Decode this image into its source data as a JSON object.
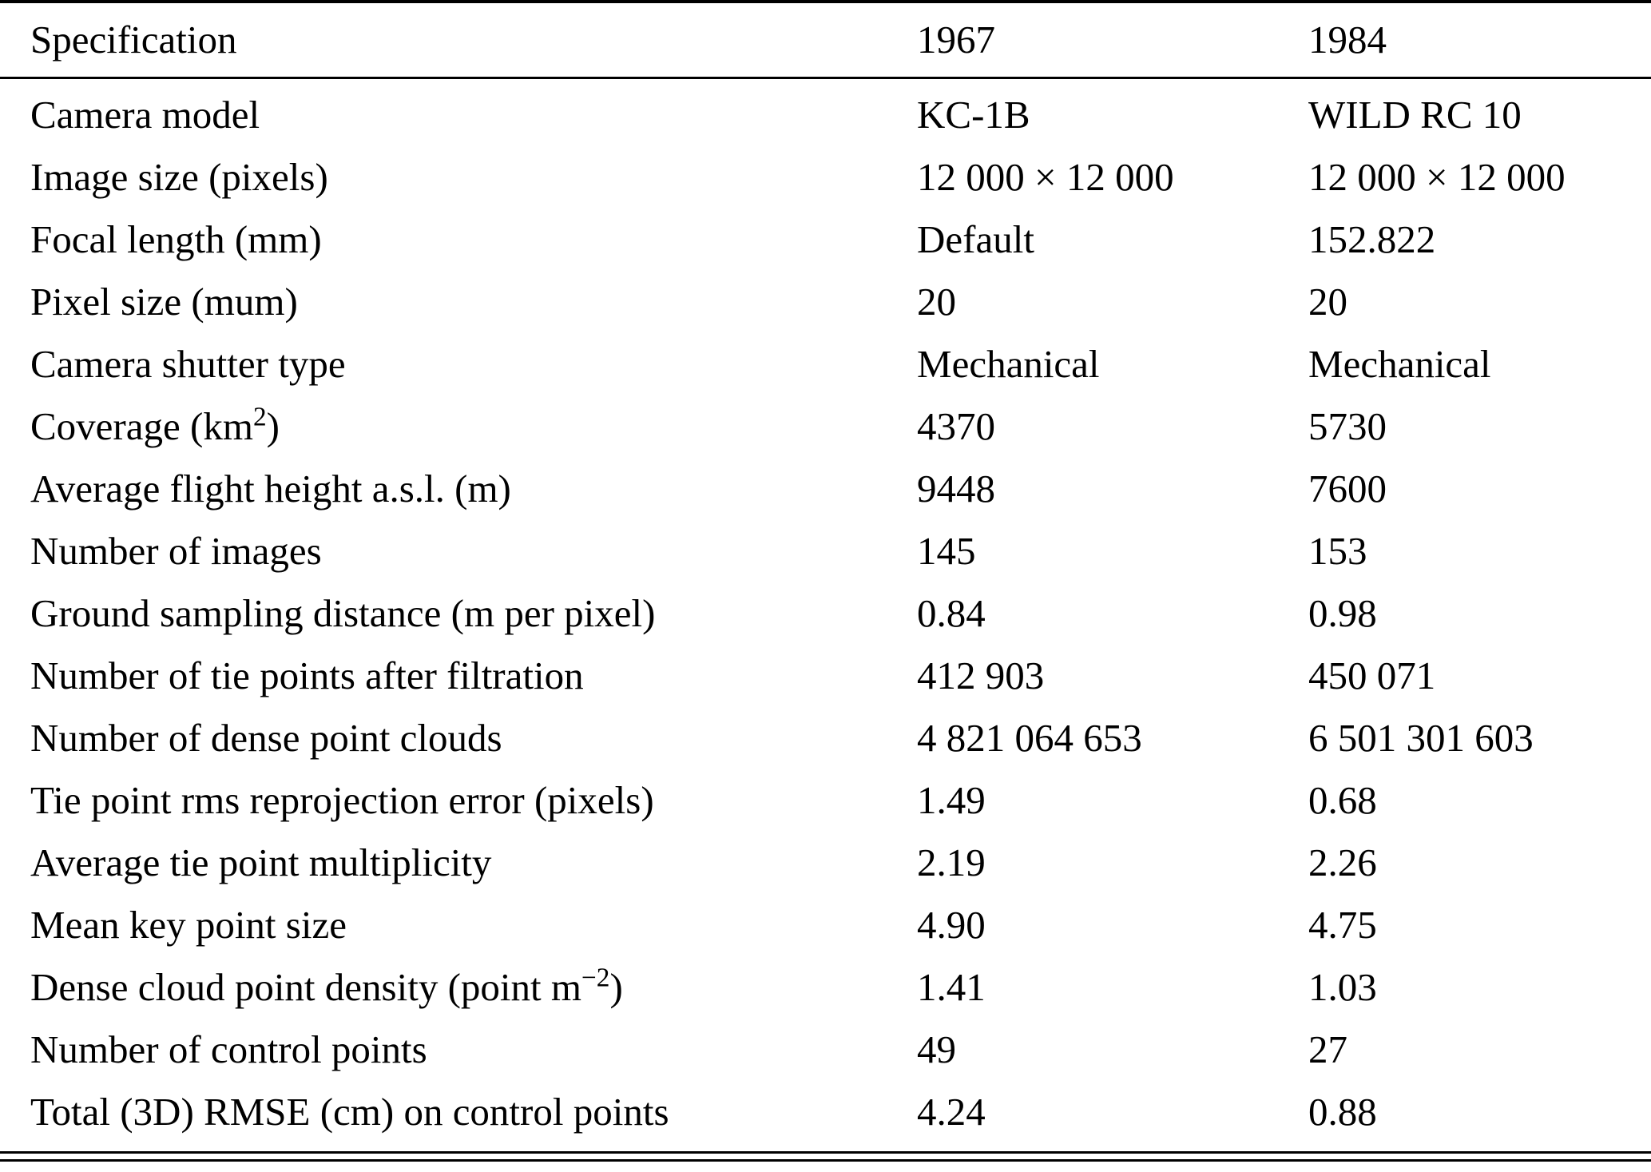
{
  "table": {
    "columns": [
      "Specification",
      "1967",
      "1984"
    ],
    "rows": [
      {
        "spec": "Camera model",
        "v1967": "KC-1B",
        "v1984": "WILD RC 10"
      },
      {
        "spec": "Image size (pixels)",
        "v1967": "12 000 × 12 000",
        "v1984": "12 000 × 12 000"
      },
      {
        "spec": "Focal length (mm)",
        "v1967": "Default",
        "v1984": "152.822"
      },
      {
        "spec": "Pixel size (mum)",
        "v1967": "20",
        "v1984": "20"
      },
      {
        "spec": "Camera shutter type",
        "v1967": "Mechanical",
        "v1984": "Mechanical"
      },
      {
        "spec": "Coverage (km^{2})",
        "v1967": "4370",
        "v1984": "5730"
      },
      {
        "spec": "Average flight height a.s.l. (m)",
        "v1967": "9448",
        "v1984": "7600"
      },
      {
        "spec": "Number of images",
        "v1967": "145",
        "v1984": "153"
      },
      {
        "spec": "Ground sampling distance (m per pixel)",
        "v1967": "0.84",
        "v1984": "0.98"
      },
      {
        "spec": "Number of tie points after filtration",
        "v1967": "412 903",
        "v1984": "450 071"
      },
      {
        "spec": "Number of dense point clouds",
        "v1967": "4 821 064 653",
        "v1984": "6 501 301 603"
      },
      {
        "spec": "Tie point rms reprojection error (pixels)",
        "v1967": "1.49",
        "v1984": "0.68"
      },
      {
        "spec": "Average tie point multiplicity",
        "v1967": "2.19",
        "v1984": "2.26"
      },
      {
        "spec": "Mean key point size",
        "v1967": "4.90",
        "v1984": "4.75"
      },
      {
        "spec": "Dense cloud point density (point m^{−2})",
        "v1967": "1.41",
        "v1984": "1.03"
      },
      {
        "spec": "Number of control points",
        "v1967": "49",
        "v1984": "27"
      },
      {
        "spec": "Total (3D) RMSE (cm) on control points",
        "v1967": "4.24",
        "v1984": "0.88"
      }
    ]
  }
}
